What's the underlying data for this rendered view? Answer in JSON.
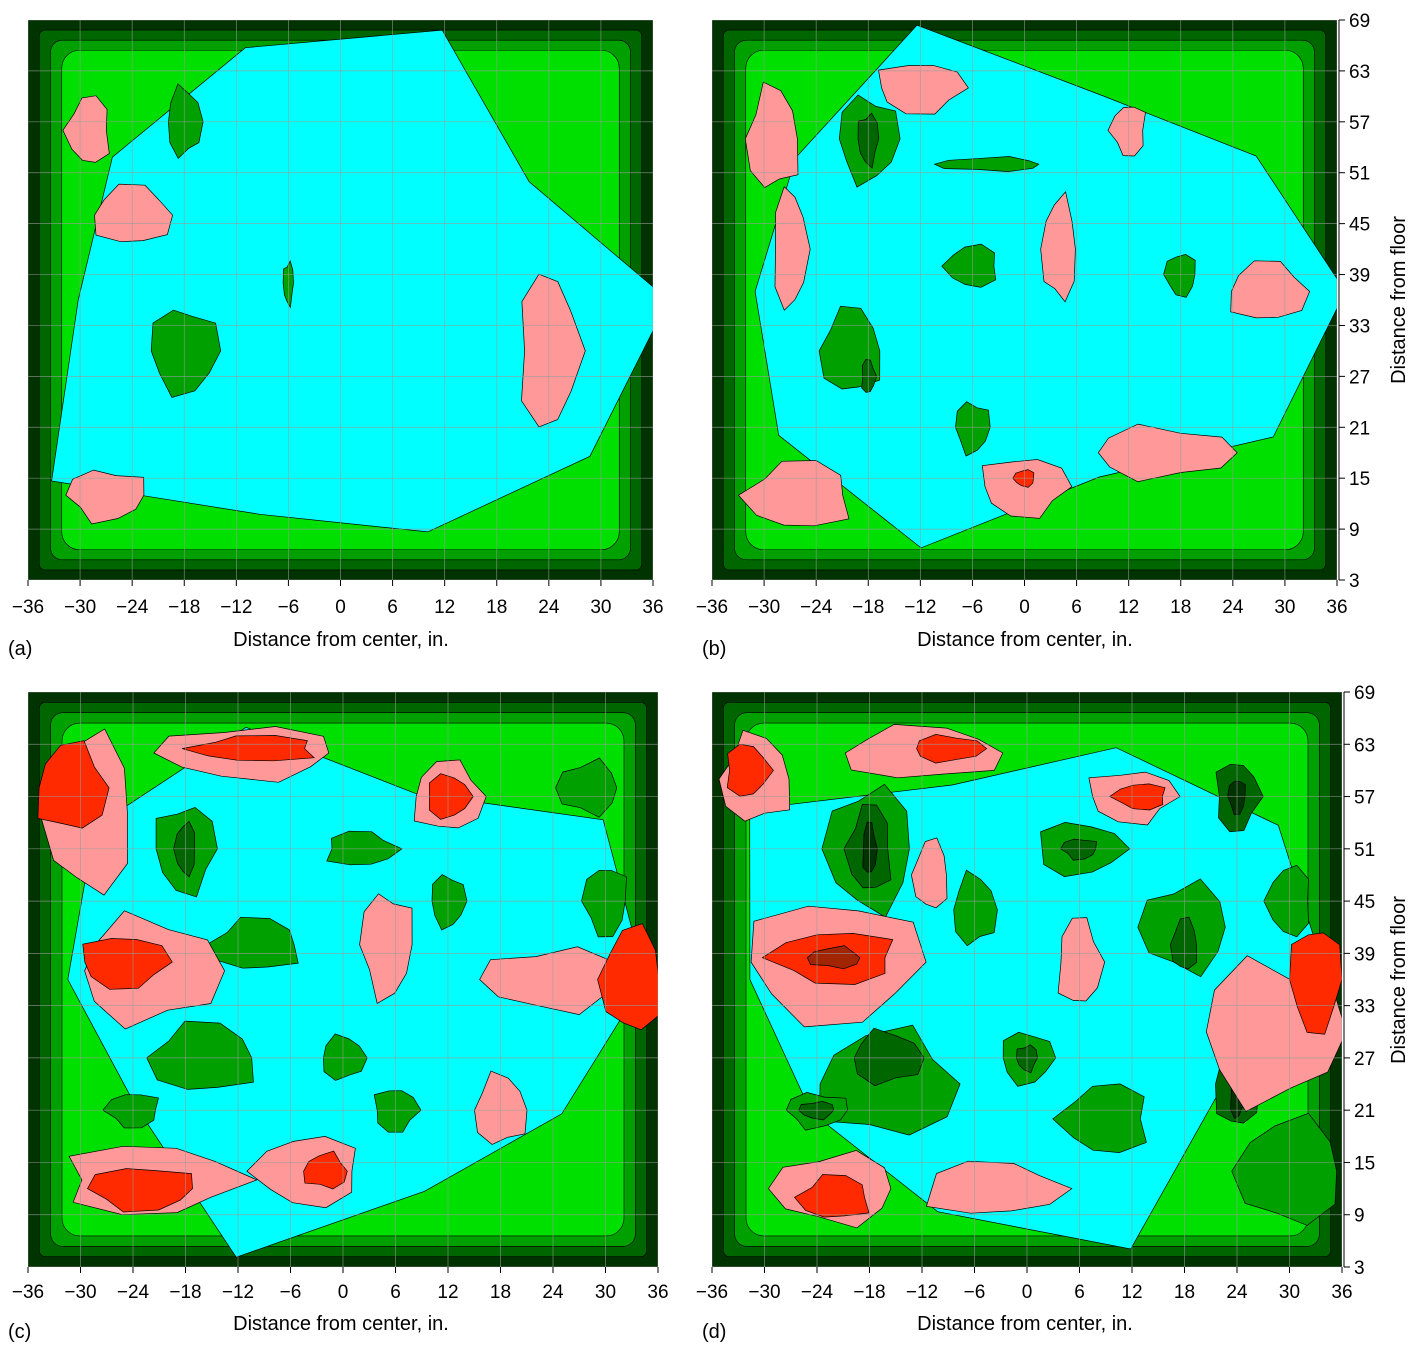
{
  "colors": {
    "ramp": [
      "#003300",
      "#006600",
      "#00a000",
      "#00e000",
      "#00ffff",
      "#ff9999",
      "#ff2a00",
      "#a02500"
    ],
    "contour_line": "#000000",
    "grid": "#9a9a9a"
  },
  "chart_data": [
    {
      "type": "contour",
      "panel_label": "(a)",
      "xlabel": "Distance from center, in.",
      "ylabel": "",
      "x_ticks": [
        "−36",
        "−30",
        "−24",
        "−18",
        "−12",
        "−6",
        "0",
        "6",
        "12",
        "18",
        "24",
        "30",
        "36"
      ],
      "y_ticks": [],
      "xlim": [
        -36,
        36
      ],
      "ylim": [
        3,
        69
      ],
      "level_regions": [
        {
          "level": 4,
          "x": 0,
          "y": 36,
          "rx": 34,
          "ry": 30
        },
        {
          "level": 2,
          "x": -18,
          "y": 57,
          "rx": 2,
          "ry": 4
        },
        {
          "level": 2,
          "x": -18,
          "y": 30,
          "rx": 4,
          "ry": 5
        },
        {
          "level": 2,
          "x": -6,
          "y": 38,
          "rx": 0.6,
          "ry": 2.5
        },
        {
          "level": 5,
          "x": -29,
          "y": 56,
          "rx": 2.5,
          "ry": 4
        },
        {
          "level": 5,
          "x": -24,
          "y": 46,
          "rx": 4.5,
          "ry": 3.5
        },
        {
          "level": 5,
          "x": 24,
          "y": 30,
          "rx": 3.5,
          "ry": 9
        },
        {
          "level": 5,
          "x": -27,
          "y": 13,
          "rx": 4.5,
          "ry": 3
        }
      ]
    },
    {
      "type": "contour",
      "panel_label": "(b)",
      "xlabel": "Distance from center, in.",
      "ylabel": "Distance from floor",
      "x_ticks": [
        "−36",
        "−30",
        "−24",
        "−18",
        "−12",
        "−6",
        "0",
        "6",
        "12",
        "18",
        "24",
        "30",
        "36"
      ],
      "y_ticks": [
        "69",
        "63",
        "57",
        "51",
        "45",
        "39",
        "33",
        "27",
        "21",
        "15",
        "9",
        "3"
      ],
      "xlim": [
        -36,
        36
      ],
      "ylim": [
        3,
        69
      ],
      "level_regions": [
        {
          "level": 4,
          "x": 0,
          "y": 37,
          "rx": 34,
          "ry": 28
        },
        {
          "level": 2,
          "x": -18,
          "y": 55,
          "rx": 3.5,
          "ry": 5
        },
        {
          "level": 1,
          "x": -18,
          "y": 55,
          "rx": 1.2,
          "ry": 3
        },
        {
          "level": 2,
          "x": -6,
          "y": 40,
          "rx": 3,
          "ry": 2.5
        },
        {
          "level": 2,
          "x": -20,
          "y": 30,
          "rx": 3.5,
          "ry": 5
        },
        {
          "level": 1,
          "x": -18,
          "y": 27,
          "rx": 0.8,
          "ry": 2
        },
        {
          "level": 2,
          "x": -6,
          "y": 21,
          "rx": 2,
          "ry": 3
        },
        {
          "level": 2,
          "x": 18,
          "y": 39,
          "rx": 1.8,
          "ry": 2.5
        },
        {
          "level": 2,
          "x": -4,
          "y": 52,
          "rx": 6,
          "ry": 0.8
        },
        {
          "level": 5,
          "x": -29,
          "y": 55,
          "rx": 3,
          "ry": 6
        },
        {
          "level": 5,
          "x": -27,
          "y": 42,
          "rx": 2,
          "ry": 7
        },
        {
          "level": 5,
          "x": -12,
          "y": 61,
          "rx": 5,
          "ry": 3
        },
        {
          "level": 5,
          "x": 12,
          "y": 56,
          "rx": 2,
          "ry": 3
        },
        {
          "level": 5,
          "x": 4,
          "y": 42,
          "rx": 2,
          "ry": 6
        },
        {
          "level": 5,
          "x": 28,
          "y": 37,
          "rx": 4.5,
          "ry": 3.5
        },
        {
          "level": 5,
          "x": 16,
          "y": 18,
          "rx": 8,
          "ry": 3
        },
        {
          "level": 5,
          "x": 0,
          "y": 14,
          "rx": 5,
          "ry": 3.5
        },
        {
          "level": 6,
          "x": 0,
          "y": 15,
          "rx": 1.2,
          "ry": 1
        },
        {
          "level": 5,
          "x": -26,
          "y": 13,
          "rx": 6,
          "ry": 4
        }
      ]
    },
    {
      "type": "contour",
      "panel_label": "(c)",
      "xlabel": "Distance from center, in.",
      "ylabel": "",
      "x_ticks": [
        "−36",
        "−30",
        "−24",
        "−18",
        "−12",
        "−6",
        "0",
        "6",
        "12",
        "18",
        "24",
        "30",
        "36"
      ],
      "y_ticks": [],
      "xlim": [
        -36,
        36
      ],
      "ylim": [
        3,
        69
      ],
      "level_regions": [
        {
          "level": 4,
          "x": 0,
          "y": 36,
          "rx": 33,
          "ry": 28
        },
        {
          "level": 2,
          "x": -18,
          "y": 51,
          "rx": 3.5,
          "ry": 5
        },
        {
          "level": 1,
          "x": -18,
          "y": 51,
          "rx": 1.2,
          "ry": 3
        },
        {
          "level": 2,
          "x": -10,
          "y": 40,
          "rx": 5,
          "ry": 3
        },
        {
          "level": 2,
          "x": 2,
          "y": 51,
          "rx": 4,
          "ry": 2
        },
        {
          "level": 2,
          "x": 12,
          "y": 45,
          "rx": 2,
          "ry": 3
        },
        {
          "level": 2,
          "x": 30,
          "y": 45,
          "rx": 2.5,
          "ry": 4
        },
        {
          "level": 2,
          "x": 28,
          "y": 58,
          "rx": 3.5,
          "ry": 3
        },
        {
          "level": 2,
          "x": -16,
          "y": 27,
          "rx": 6,
          "ry": 4
        },
        {
          "level": 2,
          "x": 0,
          "y": 27,
          "rx": 2.5,
          "ry": 2.5
        },
        {
          "level": 2,
          "x": 6,
          "y": 21,
          "rx": 2.5,
          "ry": 2.5
        },
        {
          "level": 2,
          "x": -24,
          "y": 21,
          "rx": 3,
          "ry": 2
        },
        {
          "level": 5,
          "x": -29,
          "y": 55,
          "rx": 5,
          "ry": 9
        },
        {
          "level": 6,
          "x": -31,
          "y": 58,
          "rx": 4,
          "ry": 5
        },
        {
          "level": 5,
          "x": -22,
          "y": 37,
          "rx": 8,
          "ry": 6
        },
        {
          "level": 6,
          "x": -25,
          "y": 38,
          "rx": 5,
          "ry": 3
        },
        {
          "level": 5,
          "x": -11,
          "y": 62,
          "rx": 10,
          "ry": 3
        },
        {
          "level": 6,
          "x": -10,
          "y": 62.5,
          "rx": 7,
          "ry": 1.5
        },
        {
          "level": 5,
          "x": 12,
          "y": 57,
          "rx": 4,
          "ry": 4
        },
        {
          "level": 6,
          "x": 12,
          "y": 57,
          "rx": 2.5,
          "ry": 2.5
        },
        {
          "level": 5,
          "x": 5,
          "y": 40,
          "rx": 3,
          "ry": 6
        },
        {
          "level": 5,
          "x": 24,
          "y": 36,
          "rx": 8,
          "ry": 3.5
        },
        {
          "level": 6,
          "x": 33,
          "y": 36,
          "rx": 3.5,
          "ry": 6
        },
        {
          "level": 5,
          "x": 18,
          "y": 21,
          "rx": 3,
          "ry": 4
        },
        {
          "level": 5,
          "x": -22,
          "y": 13,
          "rx": 10,
          "ry": 4
        },
        {
          "level": 6,
          "x": -23,
          "y": 12,
          "rx": 6,
          "ry": 2.5
        },
        {
          "level": 5,
          "x": -4,
          "y": 14,
          "rx": 6,
          "ry": 4
        },
        {
          "level": 6,
          "x": -2,
          "y": 14,
          "rx": 2.5,
          "ry": 2
        }
      ]
    },
    {
      "type": "contour",
      "panel_label": "(d)",
      "xlabel": "Distance from center, in.",
      "ylabel": "Distance from floor",
      "x_ticks": [
        "−36",
        "−30",
        "−24",
        "−18",
        "−12",
        "−6",
        "0",
        "6",
        "12",
        "18",
        "24",
        "30",
        "36"
      ],
      "y_ticks": [
        "69",
        "63",
        "57",
        "51",
        "45",
        "39",
        "33",
        "27",
        "21",
        "15",
        "9",
        "3"
      ],
      "xlim": [
        -36,
        36
      ],
      "ylim": [
        3,
        69
      ],
      "level_regions": [
        {
          "level": 4,
          "x": 0,
          "y": 36,
          "rx": 33,
          "ry": 28
        },
        {
          "level": 2,
          "x": -18,
          "y": 51,
          "rx": 5,
          "ry": 7
        },
        {
          "level": 1,
          "x": -18,
          "y": 51,
          "rx": 2.5,
          "ry": 5
        },
        {
          "level": 0,
          "x": -18,
          "y": 51,
          "rx": 0.8,
          "ry": 3
        },
        {
          "level": 2,
          "x": 6,
          "y": 51,
          "rx": 5,
          "ry": 3
        },
        {
          "level": 1,
          "x": 6,
          "y": 51,
          "rx": 2,
          "ry": 1.2
        },
        {
          "level": 2,
          "x": 18,
          "y": 42,
          "rx": 5,
          "ry": 5
        },
        {
          "level": 1,
          "x": 18,
          "y": 40,
          "rx": 1.5,
          "ry": 3
        },
        {
          "level": 2,
          "x": -6,
          "y": 44,
          "rx": 2.5,
          "ry": 4
        },
        {
          "level": 1,
          "x": 24,
          "y": 57,
          "rx": 2.5,
          "ry": 4
        },
        {
          "level": 0,
          "x": 24,
          "y": 57,
          "rx": 1,
          "ry": 2
        },
        {
          "level": 2,
          "x": 30,
          "y": 45,
          "rx": 2.5,
          "ry": 4
        },
        {
          "level": 2,
          "x": -16,
          "y": 24,
          "rx": 8,
          "ry": 6
        },
        {
          "level": 1,
          "x": -16,
          "y": 27,
          "rx": 4,
          "ry": 3
        },
        {
          "level": 2,
          "x": 0,
          "y": 27,
          "rx": 3,
          "ry": 3
        },
        {
          "level": 1,
          "x": 0,
          "y": 27,
          "rx": 1.2,
          "ry": 1.5
        },
        {
          "level": 2,
          "x": 9,
          "y": 20,
          "rx": 5,
          "ry": 4
        },
        {
          "level": 1,
          "x": 24,
          "y": 24,
          "rx": 2.5,
          "ry": 5
        },
        {
          "level": 0,
          "x": 24,
          "y": 23,
          "rx": 0.8,
          "ry": 3
        },
        {
          "level": 2,
          "x": -24,
          "y": 21,
          "rx": 3.5,
          "ry": 2
        },
        {
          "level": 1,
          "x": -24,
          "y": 21,
          "rx": 2,
          "ry": 1
        },
        {
          "level": 2,
          "x": 30,
          "y": 14,
          "rx": 6,
          "ry": 6
        },
        {
          "level": 5,
          "x": -31,
          "y": 59,
          "rx": 4,
          "ry": 5
        },
        {
          "level": 6,
          "x": -32,
          "y": 60,
          "rx": 2.5,
          "ry": 3
        },
        {
          "level": 5,
          "x": -22,
          "y": 38,
          "rx": 10,
          "ry": 7
        },
        {
          "level": 6,
          "x": -22,
          "y": 38.5,
          "rx": 7,
          "ry": 3
        },
        {
          "level": 7,
          "x": -22,
          "y": 38.5,
          "rx": 3,
          "ry": 1.2
        },
        {
          "level": 5,
          "x": -12,
          "y": 62,
          "rx": 9,
          "ry": 3
        },
        {
          "level": 6,
          "x": -9,
          "y": 62.5,
          "rx": 4,
          "ry": 1.5
        },
        {
          "level": 5,
          "x": 12,
          "y": 57,
          "rx": 5,
          "ry": 3
        },
        {
          "level": 6,
          "x": 13,
          "y": 57,
          "rx": 3,
          "ry": 1.5
        },
        {
          "level": 5,
          "x": -11,
          "y": 48,
          "rx": 2,
          "ry": 4
        },
        {
          "level": 5,
          "x": 6,
          "y": 38,
          "rx": 2.5,
          "ry": 5
        },
        {
          "level": 5,
          "x": 28,
          "y": 30,
          "rx": 8,
          "ry": 8
        },
        {
          "level": 6,
          "x": 33,
          "y": 36,
          "rx": 3,
          "ry": 6
        },
        {
          "level": 5,
          "x": -22,
          "y": 12,
          "rx": 7,
          "ry": 4
        },
        {
          "level": 6,
          "x": -22,
          "y": 11,
          "rx": 4,
          "ry": 2.5
        },
        {
          "level": 5,
          "x": -4,
          "y": 12,
          "rx": 8,
          "ry": 3
        }
      ]
    }
  ]
}
